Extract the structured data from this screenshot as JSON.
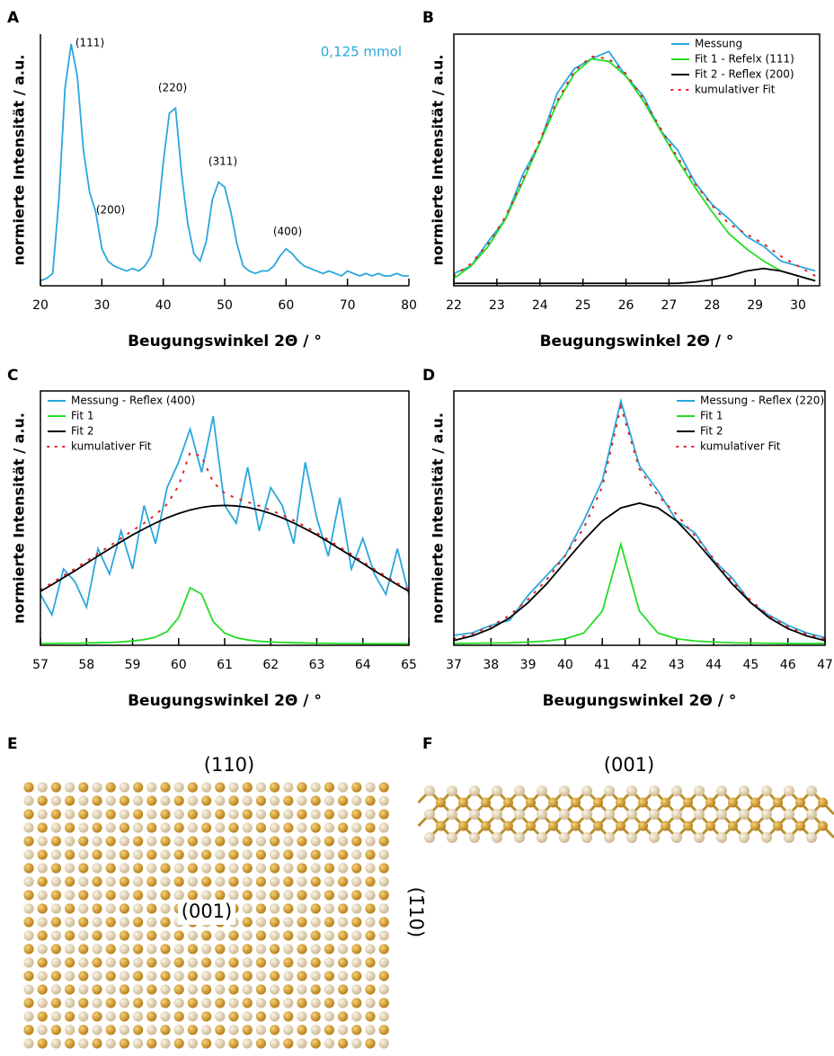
{
  "chart_data": [
    {
      "panel": "A",
      "type": "line",
      "frame": false,
      "legend": "upper right",
      "legend_marker": false,
      "xlabel": "Beugungswinkel 2Θ / °",
      "ylabel": "normierte Intensität / a.u.",
      "xlim": [
        20,
        80
      ],
      "xticks": [
        20,
        30,
        40,
        50,
        60,
        70,
        80
      ],
      "ylim": [
        0,
        1.02
      ],
      "annotations": [
        "(111)",
        "(200)",
        "(220)",
        "(311)",
        "(400)"
      ],
      "x": [
        20,
        21,
        22,
        23,
        24,
        25,
        26,
        27,
        28,
        29,
        30,
        31,
        32,
        33,
        34,
        35,
        36,
        37,
        38,
        39,
        40,
        41,
        42,
        43,
        44,
        45,
        46,
        47,
        48,
        49,
        50,
        51,
        52,
        53,
        54,
        55,
        56,
        57,
        58,
        59,
        60,
        61,
        62,
        63,
        64,
        65,
        66,
        67,
        68,
        69,
        70,
        71,
        72,
        73,
        74,
        75,
        76,
        77,
        78,
        79,
        80
      ],
      "series": [
        {
          "name": "0,125 mmol",
          "color": "#2aa7dc",
          "style": "solid",
          "values": [
            0.02,
            0.03,
            0.05,
            0.35,
            0.8,
            0.98,
            0.85,
            0.55,
            0.38,
            0.3,
            0.15,
            0.1,
            0.08,
            0.07,
            0.06,
            0.07,
            0.06,
            0.08,
            0.12,
            0.25,
            0.5,
            0.7,
            0.72,
            0.45,
            0.25,
            0.13,
            0.1,
            0.18,
            0.35,
            0.42,
            0.4,
            0.3,
            0.17,
            0.08,
            0.06,
            0.05,
            0.06,
            0.06,
            0.08,
            0.12,
            0.15,
            0.13,
            0.1,
            0.08,
            0.07,
            0.06,
            0.05,
            0.06,
            0.05,
            0.04,
            0.06,
            0.05,
            0.04,
            0.05,
            0.04,
            0.05,
            0.04,
            0.04,
            0.05,
            0.04,
            0.04
          ]
        }
      ]
    },
    {
      "panel": "B",
      "type": "line",
      "frame": true,
      "legend": "upper right",
      "xlabel": "Beugungswinkel 2Θ / °",
      "ylabel": "normierte Intensität / a.u.",
      "xlim": [
        22,
        30.5
      ],
      "xticks": [
        22,
        23,
        24,
        25,
        26,
        27,
        28,
        29,
        30
      ],
      "ylim": [
        0,
        1.02
      ],
      "x": [
        22,
        22.4,
        22.8,
        23.2,
        23.6,
        24,
        24.4,
        24.8,
        25.2,
        25.6,
        26,
        26.4,
        26.8,
        27.2,
        27.6,
        28,
        28.4,
        28.8,
        29.2,
        29.6,
        30,
        30.4
      ],
      "series": [
        {
          "name": "Messung",
          "color": "#2aa7dc",
          "style": "solid",
          "values": [
            0.05,
            0.08,
            0.18,
            0.27,
            0.45,
            0.58,
            0.78,
            0.88,
            0.92,
            0.95,
            0.85,
            0.77,
            0.63,
            0.55,
            0.42,
            0.33,
            0.27,
            0.2,
            0.16,
            0.1,
            0.08,
            0.06
          ]
        },
        {
          "name": "Fit 1 - Refelx (111)",
          "color": "#22dd22",
          "style": "solid",
          "values": [
            0.03,
            0.08,
            0.16,
            0.27,
            0.42,
            0.58,
            0.74,
            0.86,
            0.92,
            0.91,
            0.85,
            0.75,
            0.63,
            0.51,
            0.4,
            0.3,
            0.21,
            0.15,
            0.1,
            0.06,
            0.04,
            0.02
          ]
        },
        {
          "name": "Fit 2 - Reflex (200)",
          "color": "#000000",
          "style": "solid",
          "values": [
            0.01,
            0.01,
            0.01,
            0.01,
            0.01,
            0.01,
            0.01,
            0.01,
            0.01,
            0.01,
            0.01,
            0.01,
            0.01,
            0.01,
            0.015,
            0.025,
            0.04,
            0.06,
            0.07,
            0.06,
            0.04,
            0.02
          ]
        },
        {
          "name": "kumulativer Fit",
          "color": "#dd2222",
          "style": "dotted",
          "values": [
            0.04,
            0.09,
            0.17,
            0.28,
            0.43,
            0.59,
            0.75,
            0.87,
            0.93,
            0.92,
            0.86,
            0.76,
            0.64,
            0.52,
            0.415,
            0.325,
            0.25,
            0.21,
            0.17,
            0.12,
            0.08,
            0.04
          ]
        }
      ]
    },
    {
      "panel": "C",
      "type": "line",
      "frame": true,
      "legend": "upper left",
      "xlabel": "Beugungswinkel 2Θ / °",
      "ylabel": "normierte Intensität / a.u.",
      "xlim": [
        57,
        65
      ],
      "xticks": [
        57,
        58,
        59,
        60,
        61,
        62,
        63,
        64,
        65
      ],
      "ylim": [
        0,
        1
      ],
      "x": [
        57,
        57.25,
        57.5,
        57.75,
        58,
        58.25,
        58.5,
        58.75,
        59,
        59.25,
        59.5,
        59.75,
        60,
        60.25,
        60.5,
        60.75,
        61,
        61.25,
        61.5,
        61.75,
        62,
        62.25,
        62.5,
        62.75,
        63,
        63.25,
        63.5,
        63.75,
        64,
        64.25,
        64.5,
        64.75,
        65
      ],
      "series": [
        {
          "name": "Messung - Reflex (400)",
          "color": "#2aa7dc",
          "style": "solid",
          "values": [
            0.2,
            0.12,
            0.3,
            0.25,
            0.15,
            0.38,
            0.28,
            0.45,
            0.3,
            0.55,
            0.4,
            0.62,
            0.72,
            0.85,
            0.68,
            0.9,
            0.55,
            0.48,
            0.7,
            0.45,
            0.62,
            0.55,
            0.4,
            0.72,
            0.5,
            0.35,
            0.58,
            0.3,
            0.42,
            0.28,
            0.2,
            0.38,
            0.2
          ]
        },
        {
          "name": "Fit 1",
          "color": "#22dd22",
          "style": "solid",
          "values": [
            0.007,
            0.007,
            0.008,
            0.008,
            0.009,
            0.01,
            0.011,
            0.013,
            0.017,
            0.022,
            0.032,
            0.054,
            0.109,
            0.226,
            0.201,
            0.093,
            0.048,
            0.03,
            0.021,
            0.016,
            0.013,
            0.011,
            0.01,
            0.009,
            0.008,
            0.008,
            0.007,
            0.007,
            0.007,
            0.006,
            0.006,
            0.006,
            0.006
          ]
        },
        {
          "name": "Fit 2",
          "color": "#000000",
          "style": "solid",
          "values": [
            0.212,
            0.238,
            0.266,
            0.293,
            0.322,
            0.351,
            0.379,
            0.407,
            0.434,
            0.458,
            0.481,
            0.501,
            0.518,
            0.532,
            0.542,
            0.548,
            0.55,
            0.548,
            0.542,
            0.532,
            0.518,
            0.501,
            0.481,
            0.458,
            0.434,
            0.407,
            0.379,
            0.351,
            0.322,
            0.293,
            0.266,
            0.238,
            0.212
          ]
        },
        {
          "name": "kumulativer Fit",
          "color": "#dd2222",
          "style": "dotted",
          "values": [
            0.219,
            0.245,
            0.274,
            0.301,
            0.331,
            0.361,
            0.39,
            0.42,
            0.451,
            0.48,
            0.513,
            0.555,
            0.627,
            0.758,
            0.743,
            0.641,
            0.598,
            0.578,
            0.563,
            0.548,
            0.531,
            0.512,
            0.491,
            0.467,
            0.442,
            0.415,
            0.386,
            0.358,
            0.329,
            0.299,
            0.272,
            0.244,
            0.218
          ]
        }
      ]
    },
    {
      "panel": "D",
      "type": "line",
      "frame": true,
      "legend": "upper right",
      "xlabel": "Beugungswinkel 2Θ / °",
      "ylabel": "normierte Intensität / a.u.",
      "xlim": [
        37,
        47
      ],
      "xticks": [
        37,
        38,
        39,
        40,
        41,
        42,
        43,
        44,
        45,
        46,
        47
      ],
      "ylim": [
        0,
        1.02
      ],
      "x": [
        37,
        37.5,
        38,
        38.5,
        39,
        39.5,
        40,
        40.5,
        41,
        41.5,
        42,
        42.5,
        43,
        43.5,
        44,
        44.5,
        45,
        45.5,
        46,
        46.5,
        47
      ],
      "series": [
        {
          "name": "Messung - Reflex (220)",
          "color": "#2aa7dc",
          "style": "solid",
          "values": [
            0.04,
            0.05,
            0.08,
            0.1,
            0.2,
            0.28,
            0.36,
            0.5,
            0.66,
            0.98,
            0.72,
            0.62,
            0.5,
            0.45,
            0.34,
            0.27,
            0.17,
            0.12,
            0.08,
            0.05,
            0.03
          ]
        },
        {
          "name": "Fit 1",
          "color": "#22dd22",
          "style": "solid",
          "values": [
            0.007,
            0.008,
            0.009,
            0.01,
            0.013,
            0.017,
            0.026,
            0.049,
            0.137,
            0.405,
            0.137,
            0.049,
            0.026,
            0.017,
            0.013,
            0.01,
            0.009,
            0.008,
            0.007,
            0.007,
            0.007
          ]
        },
        {
          "name": "Fit 2",
          "color": "#000000",
          "style": "solid",
          "values": [
            0.019,
            0.038,
            0.067,
            0.11,
            0.171,
            0.246,
            0.334,
            0.421,
            0.499,
            0.551,
            0.57,
            0.551,
            0.499,
            0.421,
            0.334,
            0.246,
            0.171,
            0.11,
            0.067,
            0.038,
            0.019
          ]
        },
        {
          "name": "kumulativer Fit",
          "color": "#dd2222",
          "style": "dotted",
          "values": [
            0.026,
            0.046,
            0.076,
            0.12,
            0.184,
            0.263,
            0.36,
            0.47,
            0.636,
            0.956,
            0.707,
            0.6,
            0.525,
            0.438,
            0.347,
            0.256,
            0.18,
            0.118,
            0.074,
            0.045,
            0.026
          ]
        }
      ]
    }
  ],
  "structures": [
    {
      "panel": "E",
      "labels": [
        "(110)",
        "(001)",
        "(1̄10)"
      ]
    },
    {
      "panel": "F",
      "labels": [
        "(001)"
      ]
    }
  ]
}
